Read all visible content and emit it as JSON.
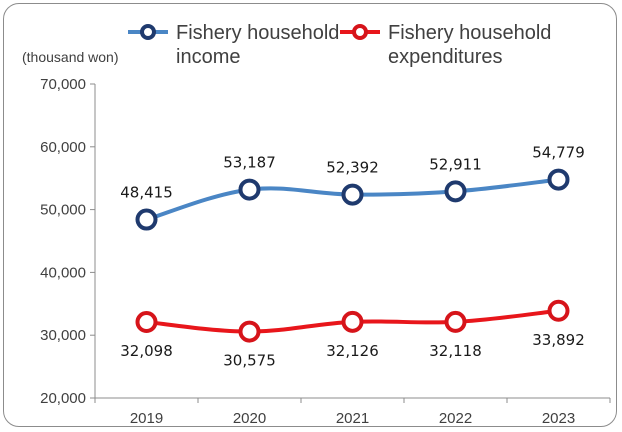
{
  "chart_data": {
    "type": "line",
    "ylabel": "(thousand won)",
    "ylim": [
      20000,
      70000
    ],
    "yticks": [
      "70,000",
      "60,000",
      "50,000",
      "40,000",
      "30,000",
      "20,000"
    ],
    "ytick_values": [
      70000,
      60000,
      50000,
      40000,
      30000,
      20000
    ],
    "categories": [
      "2019",
      "2020",
      "2021",
      "2022",
      "2023"
    ],
    "legend_position": "top",
    "series": [
      {
        "legend_lines": [
          "Fishery household",
          "income"
        ],
        "color": "#4a86c5",
        "marker_color": "#1f3a6e",
        "values": [
          48415,
          53187,
          52392,
          52911,
          54779
        ],
        "labels": [
          "48,415",
          "53,187",
          "52,392",
          "52,911",
          "54,779"
        ],
        "label_side": "above"
      },
      {
        "legend_lines": [
          "Fishery household",
          "expenditures"
        ],
        "color": "#e8161b",
        "marker_color": "#d6141a",
        "values": [
          32098,
          30575,
          32126,
          32118,
          33892
        ],
        "labels": [
          "32,098",
          "30,575",
          "32,126",
          "32,118",
          "33,892"
        ],
        "label_side": "below"
      }
    ]
  }
}
